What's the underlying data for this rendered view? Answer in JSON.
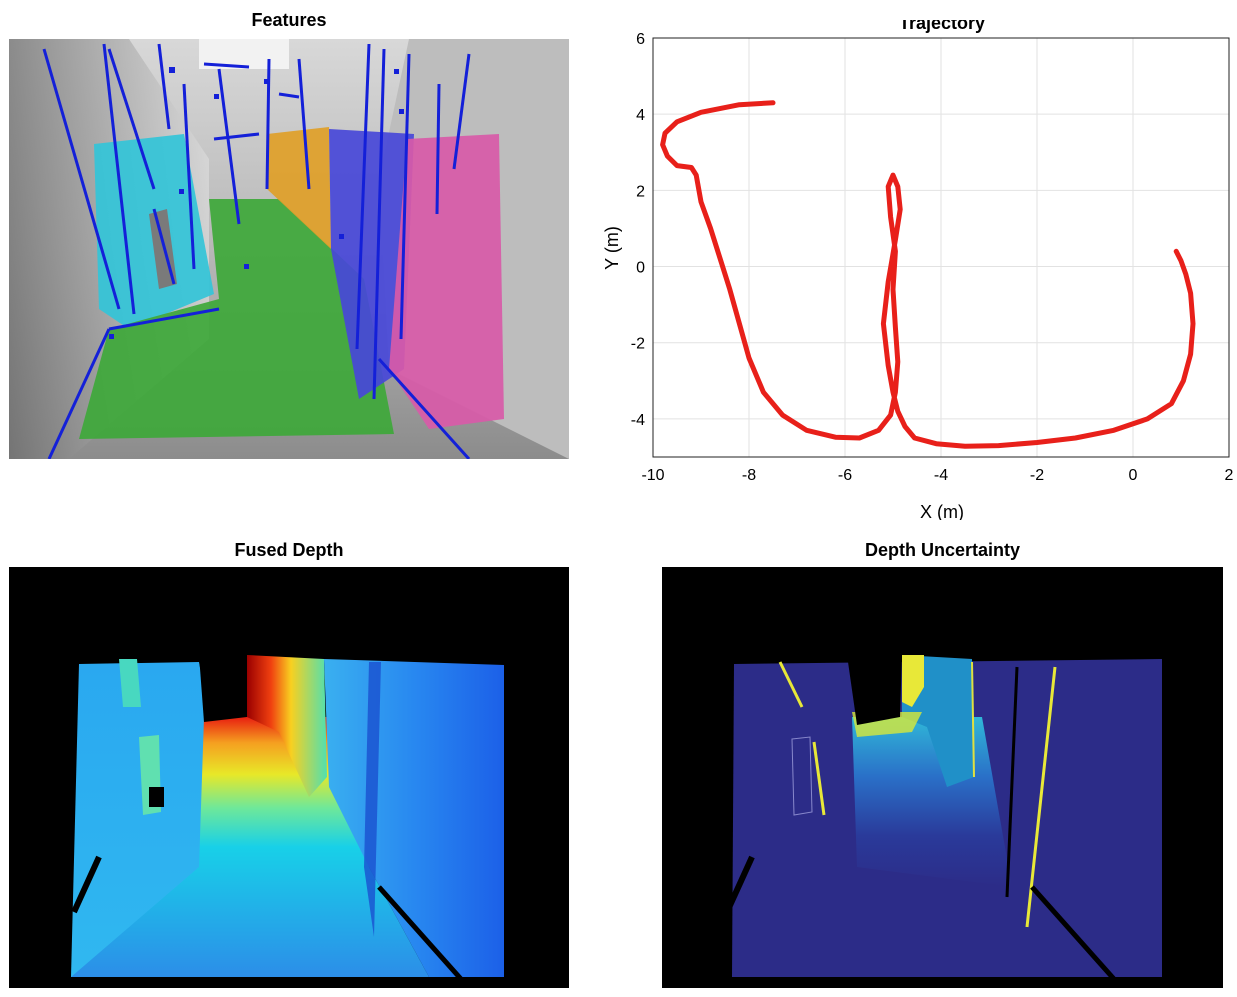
{
  "titles": {
    "features": "Features",
    "trajectory": "Trajectory",
    "fused_depth": "Fused Depth",
    "depth_uncertainty": "Depth Uncertainty"
  },
  "colors": {
    "trajectory": "#e8201a",
    "features_line": "#1420d8",
    "plane_cyan": "#33c4d8",
    "plane_green": "#3ea83a",
    "plane_orange": "#e0a028",
    "plane_blue": "#4848d8",
    "plane_magenta": "#d85aa8"
  },
  "chart_data": {
    "type": "line",
    "title": "Trajectory",
    "xlabel": "X (m)",
    "ylabel": "Y (m)",
    "xlim": [
      -10,
      2
    ],
    "ylim": [
      -5,
      6
    ],
    "xticks": [
      -10,
      -8,
      -6,
      -4,
      -2,
      0,
      2
    ],
    "yticks": [
      -4,
      -2,
      0,
      2,
      4,
      6
    ],
    "grid": true,
    "series": [
      {
        "name": "trajectory",
        "x": [
          -7.5,
          -8.2,
          -9.0,
          -9.5,
          -9.75,
          -9.8,
          -9.7,
          -9.5,
          -9.2,
          -9.1,
          -9.0,
          -8.8,
          -8.6,
          -8.4,
          -8.2,
          -8.0,
          -7.7,
          -7.3,
          -6.8,
          -6.2,
          -5.7,
          -5.3,
          -5.05,
          -4.95,
          -4.9,
          -4.95,
          -5.0,
          -4.95,
          -5.05,
          -5.1,
          -5.0,
          -4.9,
          -4.85,
          -4.95,
          -5.1,
          -5.2,
          -5.1,
          -5.0,
          -4.9,
          -4.75,
          -4.55,
          -4.1,
          -3.5,
          -2.8,
          -2.0,
          -1.2,
          -0.4,
          0.3,
          0.8,
          1.05,
          1.2,
          1.25,
          1.2,
          1.1,
          1.0,
          0.9
        ],
        "y": [
          4.3,
          4.25,
          4.05,
          3.8,
          3.5,
          3.2,
          2.9,
          2.65,
          2.6,
          2.4,
          1.7,
          1.0,
          0.2,
          -0.6,
          -1.5,
          -2.4,
          -3.3,
          -3.9,
          -4.3,
          -4.48,
          -4.5,
          -4.3,
          -3.9,
          -3.3,
          -2.5,
          -1.6,
          -0.6,
          0.4,
          1.3,
          2.1,
          2.4,
          2.1,
          1.5,
          0.7,
          -0.4,
          -1.5,
          -2.6,
          -3.3,
          -3.8,
          -4.2,
          -4.5,
          -4.65,
          -4.72,
          -4.7,
          -4.62,
          -4.5,
          -4.3,
          -4.0,
          -3.6,
          -3.0,
          -2.3,
          -1.5,
          -0.7,
          -0.2,
          0.15,
          0.4
        ]
      }
    ]
  }
}
